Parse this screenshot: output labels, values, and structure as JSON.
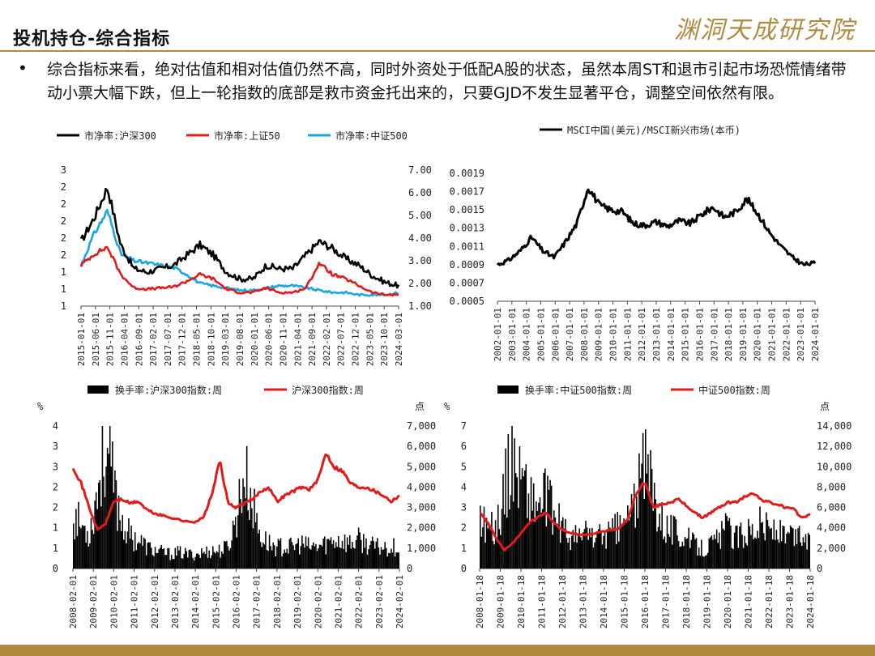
{
  "header": {
    "title": "投机持仓-综合指标",
    "logo_text": "渊洞天成研究院",
    "accent_color": "#b08a3e"
  },
  "bullet": {
    "symbol": "•",
    "text": "综合指标来看，绝对估值和相对估值仍然不高，同时外资处于低配A股的状态，虽然本周ST和退市引起市场恐慌情绪带动小票大幅下跌，但上一轮指数的底部是救市资金托出来的，只要GJD不发生显著平仓，调整空间依然有限。"
  },
  "chart_data": [
    {
      "type": "line",
      "legend": [
        "市净率:沪深300",
        "市净率:上证50",
        "市净率:中证500"
      ],
      "legend_placement": "top",
      "colors": [
        "#000000",
        "#e21a1a",
        "#1aa7e0"
      ],
      "left_ticks": [
        "3",
        "2",
        "2",
        "2",
        "2",
        "2",
        "1",
        "1",
        "1"
      ],
      "right_ticks": [
        "7.00",
        "6.00",
        "5.00",
        "4.00",
        "3.00",
        "2.00",
        "1.00"
      ],
      "right_range": [
        1.0,
        7.0
      ],
      "x_ticks": [
        "2015-01-01",
        "2015-06-01",
        "2015-11-01",
        "2016-04-01",
        "2016-09-01",
        "2017-02-01",
        "2017-07-01",
        "2017-12-01",
        "2018-05-01",
        "2018-10-01",
        "2019-03-01",
        "2019-08-01",
        "2020-01-01",
        "2020-06-01",
        "2020-11-01",
        "2021-04-01",
        "2021-09-01",
        "2022-02-01",
        "2022-07-01",
        "2022-12-01",
        "2023-05-01",
        "2023-10-01",
        "2024-03-01"
      ],
      "series": [
        {
          "name": "市净率:沪深300",
          "axis": "left",
          "range": [
            1.0,
            3.0
          ],
          "values": [
            1.95,
            2.3,
            2.75,
            1.9,
            1.55,
            1.5,
            1.55,
            1.6,
            1.75,
            1.9,
            1.75,
            1.5,
            1.4,
            1.4,
            1.6,
            1.55,
            1.55,
            1.75,
            1.95,
            1.85,
            1.7,
            1.6,
            1.45,
            1.35,
            1.3
          ]
        },
        {
          "name": "市净率:上证50",
          "axis": "right",
          "range": [
            1.0,
            7.0
          ],
          "values": [
            2.8,
            3.3,
            3.6,
            2.4,
            1.8,
            1.75,
            1.8,
            1.85,
            2.1,
            2.4,
            2.2,
            1.75,
            1.6,
            1.6,
            1.8,
            1.6,
            1.6,
            1.8,
            2.9,
            2.4,
            2.2,
            1.9,
            1.6,
            1.5,
            1.5
          ]
        },
        {
          "name": "市净率:中证500",
          "axis": "right",
          "range": [
            1.0,
            7.0
          ],
          "values": [
            2.8,
            4.2,
            5.2,
            3.3,
            3.0,
            2.9,
            2.8,
            2.7,
            2.4,
            2.0,
            1.9,
            1.8,
            1.7,
            1.7,
            1.8,
            1.9,
            1.9,
            1.8,
            1.7,
            1.6,
            1.6,
            1.5,
            1.5,
            1.5,
            1.6
          ]
        }
      ]
    },
    {
      "type": "line",
      "legend": [
        "MSCI中国(美元)/MSCI新兴市场(本币)"
      ],
      "legend_placement": "top",
      "colors": [
        "#000000"
      ],
      "y_ticks": [
        "0.0019",
        "0.0017",
        "0.0015",
        "0.0013",
        "0.0011",
        "0.0009",
        "0.0007",
        "0.0005"
      ],
      "ylim": [
        0.0005,
        0.0019
      ],
      "x_ticks": [
        "2002-01-01",
        "2003-01-01",
        "2004-01-01",
        "2005-01-01",
        "2006-01-01",
        "2007-01-01",
        "2008-01-01",
        "2009-01-01",
        "2010-01-01",
        "2011-01-01",
        "2012-01-01",
        "2013-01-01",
        "2014-01-01",
        "2015-01-01",
        "2016-01-01",
        "2017-01-01",
        "2018-01-01",
        "2019-01-01",
        "2020-01-01",
        "2021-01-01",
        "2022-01-01",
        "2023-01-01",
        "2024-01-01"
      ],
      "series": [
        {
          "name": "MSCI中国(美元)/MSCI新兴市场(本币)",
          "values": [
            0.0009,
            0.00095,
            0.00105,
            0.0012,
            0.00105,
            0.00098,
            0.00115,
            0.00135,
            0.00175,
            0.00155,
            0.0015,
            0.00148,
            0.00135,
            0.00133,
            0.00137,
            0.00132,
            0.00138,
            0.00135,
            0.00145,
            0.00153,
            0.00142,
            0.00148,
            0.00162,
            0.00145,
            0.00125,
            0.0011,
            0.00098,
            0.0009,
            0.00092
          ]
        }
      ]
    },
    {
      "type": "bar+line",
      "legend": [
        "换手率:沪深300指数:周",
        "沪深300指数:周"
      ],
      "legend_placement": "top",
      "colors": [
        "#000000",
        "#e21a1a"
      ],
      "left_unit": "%",
      "right_unit": "点",
      "left_ticks": [
        "4",
        "3",
        "3",
        "2",
        "2",
        "1",
        "1",
        "0"
      ],
      "right_ticks": [
        "7,000",
        "6,000",
        "5,000",
        "4,000",
        "3,000",
        "2,000",
        "1,000",
        "0"
      ],
      "right_range": [
        0,
        7000
      ],
      "x_ticks": [
        "2008-02-01",
        "2009-02-01",
        "2010-02-01",
        "2011-02-01",
        "2012-02-01",
        "2013-02-01",
        "2014-02-01",
        "2015-02-01",
        "2016-02-01",
        "2017-02-01",
        "2018-02-01",
        "2019-02-01",
        "2020-02-01",
        "2021-02-01",
        "2022-02-01",
        "2023-02-01",
        "2024-02-01"
      ],
      "series": [
        {
          "name": "换手率:沪深300指数:周",
          "axis": "left",
          "range": [
            0,
            4
          ],
          "values": [
            1.5,
            1.2,
            1.0,
            2.3,
            3.5,
            2.2,
            1.3,
            0.9,
            0.8,
            0.6,
            0.5,
            0.45,
            0.4,
            0.45,
            0.4,
            0.4,
            0.45,
            0.5,
            0.5,
            0.6,
            1.4,
            2.7,
            1.8,
            0.9,
            0.7,
            0.6,
            0.6,
            0.6,
            0.7,
            0.6,
            0.6,
            0.7,
            0.8,
            0.8,
            0.7,
            0.8,
            0.7,
            0.6,
            0.6,
            0.6,
            0.6
          ]
        },
        {
          "name": "沪深300指数:周",
          "axis": "right",
          "range": [
            0,
            7000
          ],
          "values": [
            5000,
            4200,
            3000,
            1900,
            2200,
            3300,
            3400,
            3200,
            3300,
            2900,
            2700,
            2600,
            2500,
            2400,
            2300,
            2300,
            2500,
            3600,
            5300,
            3200,
            3000,
            3200,
            3400,
            3800,
            4000,
            3300,
            3600,
            3800,
            4000,
            3900,
            4300,
            5700,
            5000,
            4800,
            4200,
            4000,
            4000,
            3800,
            3600,
            3300,
            3600
          ]
        }
      ]
    },
    {
      "type": "bar+line",
      "legend": [
        "换手率:中证500指数:周",
        "中证500指数:周"
      ],
      "legend_placement": "top",
      "colors": [
        "#000000",
        "#e21a1a"
      ],
      "left_unit": "%",
      "right_unit": "点",
      "left_ticks": [
        "7",
        "6",
        "5",
        "4",
        "3",
        "2",
        "1",
        "0"
      ],
      "right_ticks": [
        "14,000",
        "12,000",
        "10,000",
        "8,000",
        "6,000",
        "4,000",
        "2,000",
        "0"
      ],
      "right_range": [
        0,
        14000
      ],
      "x_ticks": [
        "2008-01-18",
        "2009-01-18",
        "2010-01-18",
        "2011-01-18",
        "2012-01-18",
        "2013-01-18",
        "2014-01-18",
        "2015-01-18",
        "2016-01-18",
        "2017-01-18",
        "2018-01-18",
        "2019-01-18",
        "2020-01-18",
        "2021-01-18",
        "2022-01-18",
        "2023-01-18",
        "2024-01-18"
      ],
      "series": [
        {
          "name": "换手率:中证500指数:周",
          "axis": "left",
          "range": [
            0,
            7
          ],
          "values": [
            2.5,
            2.0,
            2.0,
            4.0,
            5.5,
            4.5,
            3.5,
            3.0,
            3.5,
            2.5,
            2.0,
            1.5,
            1.5,
            1.8,
            1.5,
            1.6,
            1.8,
            2.0,
            2.5,
            3.5,
            5.0,
            4.0,
            2.5,
            2.0,
            1.8,
            1.5,
            1.2,
            1.0,
            1.2,
            1.5,
            2.0,
            1.5,
            1.8,
            2.0,
            2.2,
            2.0,
            1.8,
            1.5,
            1.5,
            1.6,
            1.2
          ]
        },
        {
          "name": "中证500指数:周",
          "axis": "right",
          "range": [
            0,
            14000
          ],
          "values": [
            5500,
            4500,
            3000,
            1800,
            2500,
            3500,
            4500,
            5000,
            5500,
            4500,
            3800,
            3500,
            3300,
            3300,
            3500,
            3700,
            3800,
            4000,
            5000,
            7500,
            8500,
            6000,
            6300,
            6500,
            6800,
            6200,
            5500,
            5000,
            5500,
            6000,
            6500,
            6500,
            7000,
            7500,
            6800,
            6500,
            6300,
            6000,
            5800,
            5000,
            5300
          ]
        }
      ]
    }
  ]
}
